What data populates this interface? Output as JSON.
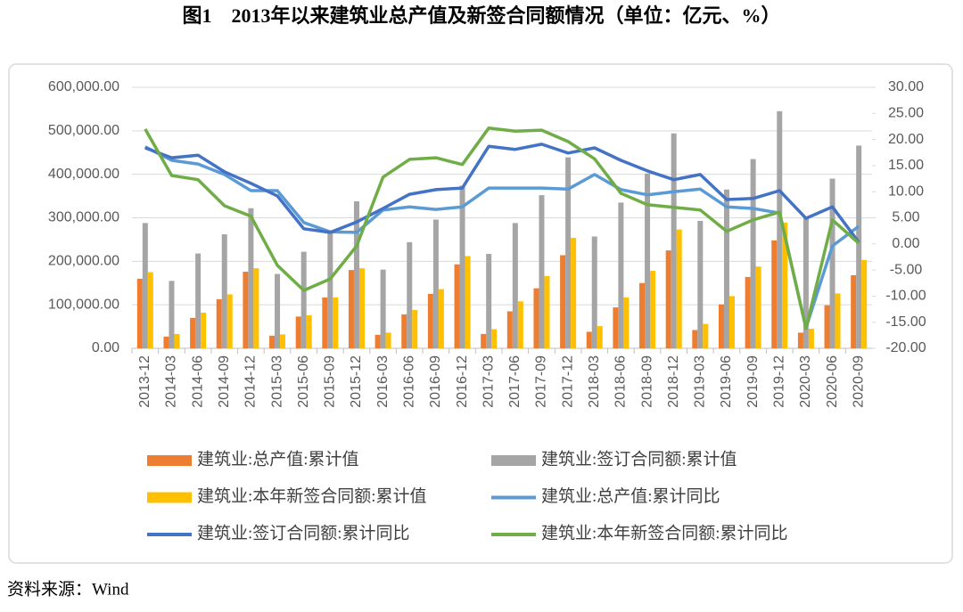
{
  "chart_data": {
    "type": "bar",
    "title": "图1　2013年以来建筑业总产值及新签合同额情况（单位：亿元、%）",
    "source": "资料来源：Wind",
    "categories": [
      "2013-12",
      "2014-03",
      "2014-06",
      "2014-09",
      "2014-12",
      "2015-03",
      "2015-06",
      "2015-09",
      "2015-12",
      "2016-03",
      "2016-06",
      "2016-09",
      "2016-12",
      "2017-03",
      "2017-06",
      "2017-09",
      "2017-12",
      "2018-03",
      "2018-06",
      "2018-09",
      "2018-12",
      "2019-03",
      "2019-06",
      "2019-09",
      "2019-12",
      "2020-03",
      "2020-06",
      "2020-09"
    ],
    "series": [
      {
        "name": "建筑业:总产值:累计值",
        "type": "bar",
        "color": "#ED7D31",
        "values": [
          160000,
          27000,
          70000,
          113000,
          176000,
          29000,
          73000,
          117000,
          180000,
          31000,
          78000,
          125000,
          193000,
          33000,
          85000,
          138000,
          214000,
          38000,
          94000,
          150000,
          225000,
          42000,
          101000,
          164000,
          248000,
          36000,
          99000,
          168000
        ]
      },
      {
        "name": "建筑业:签订合同额:累计值",
        "type": "bar",
        "color": "#A5A5A5",
        "values": [
          288000,
          155000,
          218000,
          262000,
          322000,
          171000,
          222000,
          265000,
          338000,
          181000,
          244000,
          296000,
          374000,
          217000,
          288000,
          352000,
          439000,
          257000,
          335000,
          402000,
          494000,
          293000,
          365000,
          435000,
          545000,
          300000,
          390000,
          466000
        ]
      },
      {
        "name": "建筑业:本年新签合同额:累计值",
        "type": "bar",
        "color": "#FFC000",
        "values": [
          175000,
          33000,
          82000,
          124000,
          184000,
          32000,
          76000,
          117000,
          184000,
          36000,
          88000,
          136000,
          212000,
          44000,
          108000,
          166000,
          254000,
          51000,
          117000,
          178000,
          273000,
          56000,
          120000,
          188000,
          289000,
          45000,
          126000,
          203000
        ]
      },
      {
        "name": "建筑业:总产值:累计同比",
        "type": "line",
        "axis": "y2",
        "color": "#5B9BD5",
        "values": [
          18.6,
          16.0,
          15.3,
          13.3,
          10.2,
          10.2,
          4.1,
          2.3,
          2.2,
          6.5,
          7.1,
          6.6,
          7.1,
          10.7,
          10.7,
          10.7,
          10.5,
          13.3,
          10.4,
          9.4,
          10.0,
          10.5,
          7.1,
          6.8,
          5.9,
          -16.1,
          -0.4,
          3.4
        ]
      },
      {
        "name": "建筑业:签订合同额:累计同比",
        "type": "line",
        "axis": "y2",
        "color": "#4472C4",
        "values": [
          18.4,
          16.5,
          17.0,
          13.8,
          11.6,
          9.2,
          2.9,
          2.2,
          4.2,
          6.8,
          9.5,
          10.4,
          10.7,
          18.7,
          18.1,
          19.1,
          17.4,
          18.4,
          16.0,
          14.0,
          12.3,
          13.3,
          8.5,
          8.7,
          10.2,
          4.9,
          7.1,
          0.3
        ]
      },
      {
        "name": "建筑业:本年新签合同额:累计同比",
        "type": "line",
        "axis": "y2",
        "color": "#70AD47",
        "values": [
          22.0,
          13.1,
          12.3,
          7.3,
          5.3,
          -4.1,
          -8.9,
          -6.7,
          -0.4,
          12.8,
          16.2,
          16.5,
          15.2,
          22.2,
          21.6,
          21.8,
          19.6,
          16.3,
          9.7,
          7.5,
          7.0,
          6.5,
          2.4,
          4.6,
          6.1,
          -16.2,
          4.6,
          0.1
        ]
      }
    ],
    "ylim": [
      0,
      600000
    ],
    "yticks": [
      {
        "value": 0,
        "label": "0.00"
      },
      {
        "value": 100000,
        "label": "100,000.00"
      },
      {
        "value": 200000,
        "label": "200,000.00"
      },
      {
        "value": 300000,
        "label": "300,000.00"
      },
      {
        "value": 400000,
        "label": "400,000.00"
      },
      {
        "value": 500000,
        "label": "500,000.00"
      },
      {
        "value": 600000,
        "label": "600,000.00"
      }
    ],
    "y2lim": [
      -20,
      30
    ],
    "y2ticks": [
      {
        "value": -20,
        "label": "-20.00"
      },
      {
        "value": -15,
        "label": "-15.00"
      },
      {
        "value": -10,
        "label": "-10.00"
      },
      {
        "value": -5,
        "label": "-5.00"
      },
      {
        "value": 0,
        "label": "0.00"
      },
      {
        "value": 5,
        "label": "5.00"
      },
      {
        "value": 10,
        "label": "10.00"
      },
      {
        "value": 15,
        "label": "15.00"
      },
      {
        "value": 20,
        "label": "20.00"
      },
      {
        "value": 25,
        "label": "25.00"
      },
      {
        "value": 30,
        "label": "30.00"
      }
    ],
    "grid": true,
    "legend": "bottom"
  }
}
